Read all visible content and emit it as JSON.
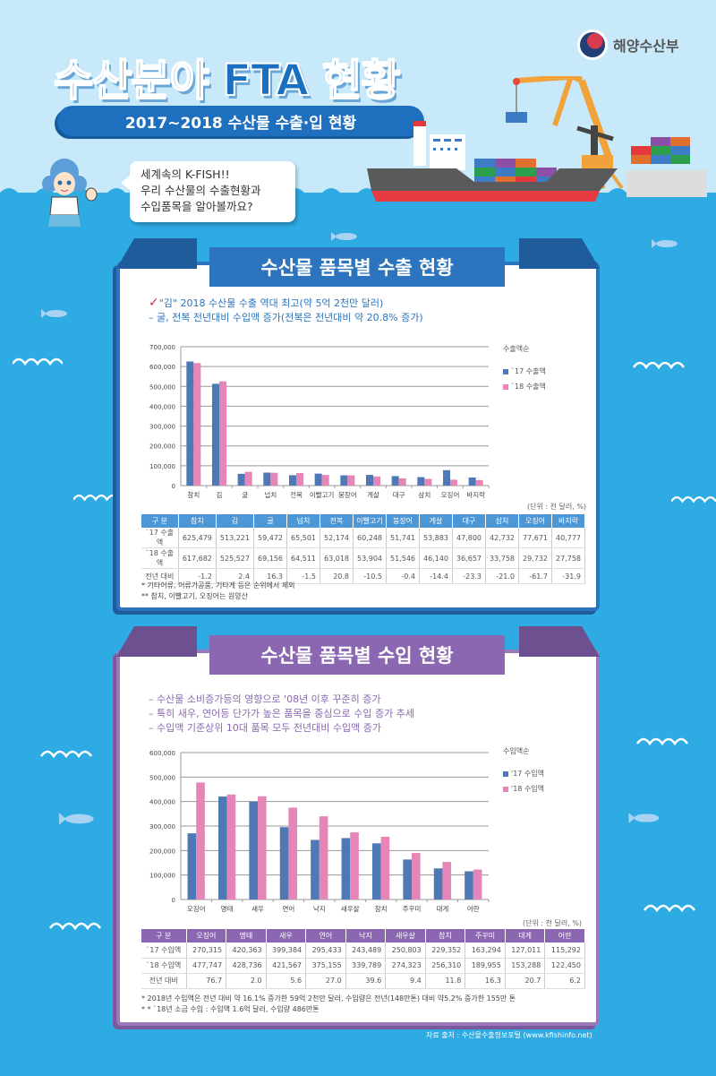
{
  "header": {
    "title": "수산분야 FTA 현황",
    "subtitle": "2017~2018 수산물 수출·입 현황",
    "logo_text": "해양수산부"
  },
  "speech_bubble": {
    "line1": "세계속의 K-FISH!!",
    "line2": "우리 수산물의 수출현황과",
    "line3": "수입품목을 알아볼까요?"
  },
  "export_section": {
    "title": "수산물 품목별 수출 현황",
    "note1": "\"김\" 2018 수산물 수출 역대 최고(약 5억 2천만 달러)",
    "note2": "– 굴, 전복 전년대비 수입액 증가(전복은 전년대비 약 20.8% 증가)",
    "legend_title": "수출액순",
    "legend_17": "`17 수출액",
    "legend_18": "`18 수출액",
    "unit": "(단위 : 천 달러, %)",
    "table_header": [
      "구 분",
      "참치",
      "김",
      "굴",
      "넙치",
      "전복",
      "이빨고기",
      "붕장어",
      "게살",
      "대구",
      "삼치",
      "오징어",
      "바지락"
    ],
    "table_rows": [
      [
        "`17 수출액",
        "625,479",
        "513,221",
        "59,472",
        "65,501",
        "52,174",
        "60,248",
        "51,741",
        "53,883",
        "47,800",
        "42,732",
        "77,671",
        "40,777"
      ],
      [
        "`18 수출액",
        "617,682",
        "525,527",
        "69,156",
        "64,511",
        "63,018",
        "53,904",
        "51,546",
        "46,140",
        "36,657",
        "33,758",
        "29,732",
        "27,758"
      ],
      [
        "전년 대비",
        "-1.2",
        "2.4",
        "16.3",
        "-1.5",
        "20.8",
        "-10.5",
        "-0.4",
        "-14.4",
        "-23.3",
        "-21.0",
        "-61.7",
        "-31.9"
      ]
    ],
    "footnote1": "* 기타어류, 어류가공품, 기타게 등은 순위에서 제외",
    "footnote2": "** 참치, 이빨고기, 오징어는 원양산"
  },
  "import_section": {
    "title": "수산물 품목별 수입 현황",
    "note1": "– 수산물 소비증가등의 영향으로 '08년 이후 꾸준히 증가",
    "note2": "– 특히 새우, 연어등 단가가 높은 품목을 중심으로 수입 증가 추세",
    "note3": "– 수입액 기준상위 10대 품목 모두 전년대비 수입액 증가",
    "legend_title": "수입액순",
    "legend_17": "'17 수입액",
    "legend_18": "'18 수입액",
    "unit": "(단위 : 천 달러, %)",
    "table_header": [
      "구 분",
      "오징어",
      "명태",
      "새우",
      "연어",
      "낙지",
      "새우살",
      "참치",
      "주꾸미",
      "대게",
      "어란"
    ],
    "table_rows": [
      [
        "`17 수입액",
        "270,315",
        "420,363",
        "399,384",
        "295,433",
        "243,489",
        "250,803",
        "229,352",
        "163,294",
        "127,011",
        "115,292"
      ],
      [
        "`18 수입액",
        "477,747",
        "428,736",
        "421,567",
        "375,155",
        "339,789",
        "274,323",
        "256,310",
        "189,955",
        "153,288",
        "122,450"
      ],
      [
        "전년 대비",
        "76.7",
        "2.0",
        "5.6",
        "27.0",
        "39.6",
        "9.4",
        "11.8",
        "16.3",
        "20.7",
        "6.2"
      ]
    ],
    "footnote1": "* 2018년 수입액은 전년 대비 약 16.1% 증가한 59억 2천만 달러, 수입량은 전년(148만톤) 대비 약5.2% 증가한 155만 톤",
    "footnote2": "* * `18년 소금 수입 : 수입액 1.6억 달러, 수입량 486만톤"
  },
  "source": "자료 출처 : 수산물수출정보포털 (www.kfishinfo.net)",
  "colors": {
    "series_17": "#4f79b5",
    "series_18": "#e586b8",
    "export_accent": "#2c74bd",
    "import_accent": "#8a67b0",
    "sea": "#2fabe3",
    "sky": "#c8e9fa"
  },
  "chart_data": [
    {
      "type": "bar",
      "title": "수산물 품목별 수출 현황",
      "categories": [
        "참치",
        "김",
        "굴",
        "넙치",
        "전복",
        "이빨고기",
        "붕장어",
        "게살",
        "대구",
        "삼치",
        "오징어",
        "바지락"
      ],
      "series": [
        {
          "name": "`17 수출액",
          "values": [
            625479,
            513221,
            59472,
            65501,
            52174,
            60248,
            51741,
            53883,
            47800,
            42732,
            77671,
            40777
          ]
        },
        {
          "name": "`18 수출액",
          "values": [
            617682,
            525527,
            69156,
            64511,
            63018,
            53904,
            51546,
            46140,
            36657,
            33758,
            29732,
            27758
          ]
        }
      ],
      "yoy_pct": [
        -1.2,
        2.4,
        16.3,
        -1.5,
        20.8,
        -10.5,
        -0.4,
        -14.4,
        -23.3,
        -21.0,
        -61.7,
        -31.9
      ],
      "xlabel": "",
      "ylabel": "",
      "ylim": [
        0,
        700000
      ],
      "yticks": [
        0,
        100000,
        200000,
        300000,
        400000,
        500000,
        600000,
        700000
      ],
      "legend_title": "수출액순",
      "legend_position": "right",
      "grid": true,
      "unit": "천 달러, %"
    },
    {
      "type": "bar",
      "title": "수산물 품목별 수입 현황",
      "categories": [
        "오징어",
        "명태",
        "새우",
        "연어",
        "낙지",
        "새우살",
        "참치",
        "주꾸미",
        "대게",
        "어란"
      ],
      "series": [
        {
          "name": "'17 수입액",
          "values": [
            270315,
            420363,
            399384,
            295433,
            243489,
            250803,
            229352,
            163294,
            127011,
            115292
          ]
        },
        {
          "name": "'18 수입액",
          "values": [
            477747,
            428736,
            421567,
            375155,
            339789,
            274323,
            256310,
            189955,
            153288,
            122450
          ]
        }
      ],
      "yoy_pct": [
        76.7,
        2.0,
        5.6,
        27.0,
        39.6,
        9.4,
        11.8,
        16.3,
        20.7,
        6.2
      ],
      "xlabel": "",
      "ylabel": "",
      "ylim": [
        0,
        600000
      ],
      "yticks": [
        0,
        100000,
        200000,
        300000,
        400000,
        500000,
        600000
      ],
      "legend_title": "수입액순",
      "legend_position": "right",
      "grid": true,
      "unit": "천 달러, %"
    }
  ]
}
